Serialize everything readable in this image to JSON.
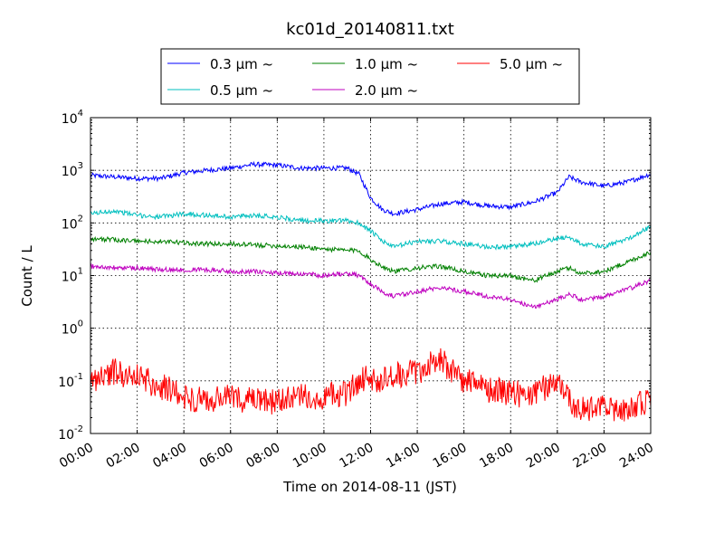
{
  "chart_data": {
    "type": "line",
    "title": "kc01d_20140811.txt",
    "xlabel": "Time on 2014-08-11 (JST)",
    "ylabel": "Count / L",
    "yscale": "log",
    "ylim": [
      0.01,
      10000
    ],
    "xlim": [
      "00:00",
      "24:00"
    ],
    "xticks": [
      "00:00",
      "02:00",
      "04:00",
      "06:00",
      "08:00",
      "10:00",
      "12:00",
      "14:00",
      "16:00",
      "18:00",
      "20:00",
      "22:00",
      "24:00"
    ],
    "yticks": [
      {
        "base": "10",
        "exp": "-2",
        "value": 0.01
      },
      {
        "base": "10",
        "exp": "-1",
        "value": 0.1
      },
      {
        "base": "10",
        "exp": "0",
        "value": 1
      },
      {
        "base": "10",
        "exp": "1",
        "value": 10
      },
      {
        "base": "10",
        "exp": "2",
        "value": 100
      },
      {
        "base": "10",
        "exp": "3",
        "value": 1000
      },
      {
        "base": "10",
        "exp": "4",
        "value": 10000
      }
    ],
    "grid": true,
    "legend_position": "top-center",
    "series": [
      {
        "name": "0.3 μm ~",
        "color": "#0000ff",
        "x": [
          "00:00",
          "01:00",
          "02:00",
          "03:00",
          "04:00",
          "05:00",
          "06:00",
          "07:00",
          "08:00",
          "09:00",
          "10:00",
          "11:00",
          "11:30",
          "12:00",
          "12:30",
          "13:00",
          "14:00",
          "15:00",
          "16:00",
          "17:00",
          "18:00",
          "19:00",
          "20:00",
          "20:30",
          "21:00",
          "22:00",
          "23:00",
          "24:00"
        ],
        "y": [
          800,
          750,
          700,
          700,
          900,
          1000,
          1100,
          1300,
          1250,
          1100,
          1100,
          1100,
          850,
          300,
          180,
          150,
          180,
          230,
          250,
          210,
          200,
          250,
          380,
          750,
          600,
          500,
          600,
          850
        ]
      },
      {
        "name": "0.5 μm ~",
        "color": "#00bfbf",
        "x": [
          "00:00",
          "01:00",
          "02:00",
          "03:00",
          "04:00",
          "05:00",
          "06:00",
          "07:00",
          "08:00",
          "09:00",
          "10:00",
          "11:00",
          "11:30",
          "12:00",
          "12:30",
          "13:00",
          "14:00",
          "15:00",
          "16:00",
          "17:00",
          "18:00",
          "19:00",
          "20:00",
          "20:30",
          "21:00",
          "22:00",
          "23:00",
          "24:00"
        ],
        "y": [
          150,
          170,
          140,
          130,
          150,
          140,
          130,
          140,
          130,
          110,
          110,
          110,
          100,
          70,
          45,
          35,
          45,
          45,
          40,
          35,
          35,
          40,
          50,
          55,
          40,
          35,
          50,
          85
        ]
      },
      {
        "name": "1.0 μm ~",
        "color": "#008000",
        "x": [
          "00:00",
          "01:00",
          "02:00",
          "03:00",
          "04:00",
          "05:00",
          "06:00",
          "07:00",
          "08:00",
          "09:00",
          "10:00",
          "11:00",
          "11:30",
          "12:00",
          "12:30",
          "13:00",
          "14:00",
          "15:00",
          "16:00",
          "17:00",
          "18:00",
          "19:00",
          "20:00",
          "20:30",
          "21:00",
          "22:00",
          "23:00",
          "24:00"
        ],
        "y": [
          50,
          48,
          45,
          44,
          42,
          40,
          40,
          38,
          37,
          35,
          32,
          30,
          30,
          20,
          15,
          12,
          14,
          15,
          12,
          10,
          10,
          8,
          12,
          14,
          11,
          12,
          18,
          28
        ]
      },
      {
        "name": "2.0 μm ~",
        "color": "#bf00bf",
        "x": [
          "00:00",
          "01:00",
          "02:00",
          "03:00",
          "04:00",
          "05:00",
          "06:00",
          "07:00",
          "08:00",
          "09:00",
          "10:00",
          "11:00",
          "11:30",
          "12:00",
          "12:30",
          "13:00",
          "14:00",
          "15:00",
          "16:00",
          "17:00",
          "18:00",
          "19:00",
          "20:00",
          "20:30",
          "21:00",
          "22:00",
          "23:00",
          "24:00"
        ],
        "y": [
          15,
          14,
          14,
          13,
          13,
          13,
          12,
          12,
          11,
          11,
          10,
          11,
          10,
          7,
          5,
          4,
          5,
          6,
          5,
          4,
          3.5,
          2.5,
          3.5,
          4.5,
          3.5,
          4,
          5.5,
          8
        ]
      },
      {
        "name": "5.0 μm ~",
        "color": "#ff0000",
        "x": [
          "00:00",
          "01:00",
          "02:00",
          "03:00",
          "04:00",
          "05:00",
          "06:00",
          "07:00",
          "08:00",
          "09:00",
          "10:00",
          "11:00",
          "11:30",
          "12:00",
          "12:30",
          "13:00",
          "14:00",
          "15:00",
          "16:00",
          "17:00",
          "18:00",
          "19:00",
          "20:00",
          "20:30",
          "21:00",
          "22:00",
          "23:00",
          "24:00"
        ],
        "y": [
          0.1,
          0.15,
          0.12,
          0.08,
          0.05,
          0.04,
          0.05,
          0.04,
          0.04,
          0.05,
          0.05,
          0.06,
          0.1,
          0.12,
          0.1,
          0.12,
          0.15,
          0.25,
          0.1,
          0.07,
          0.06,
          0.05,
          0.12,
          0.04,
          0.03,
          0.03,
          0.03,
          0.04
        ]
      }
    ]
  }
}
